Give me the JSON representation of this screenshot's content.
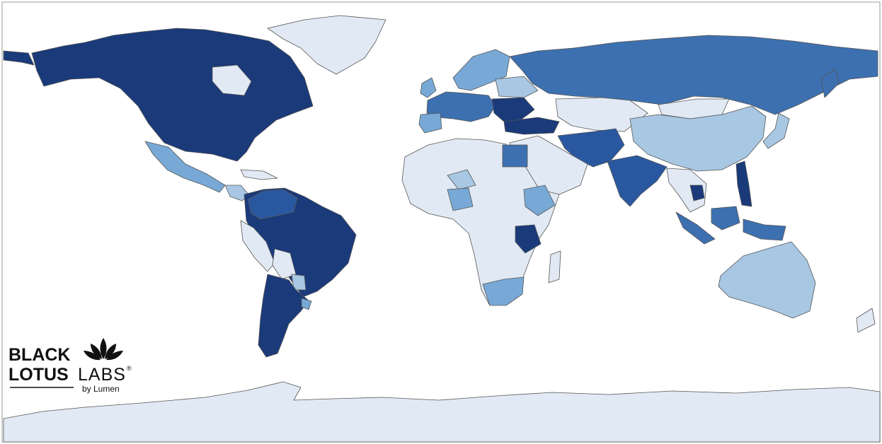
{
  "logo": {
    "line1": "BLACK",
    "line2": "LOTUS",
    "labs": "LABS",
    "registered": "®",
    "byline": "by Lumen"
  }
}
